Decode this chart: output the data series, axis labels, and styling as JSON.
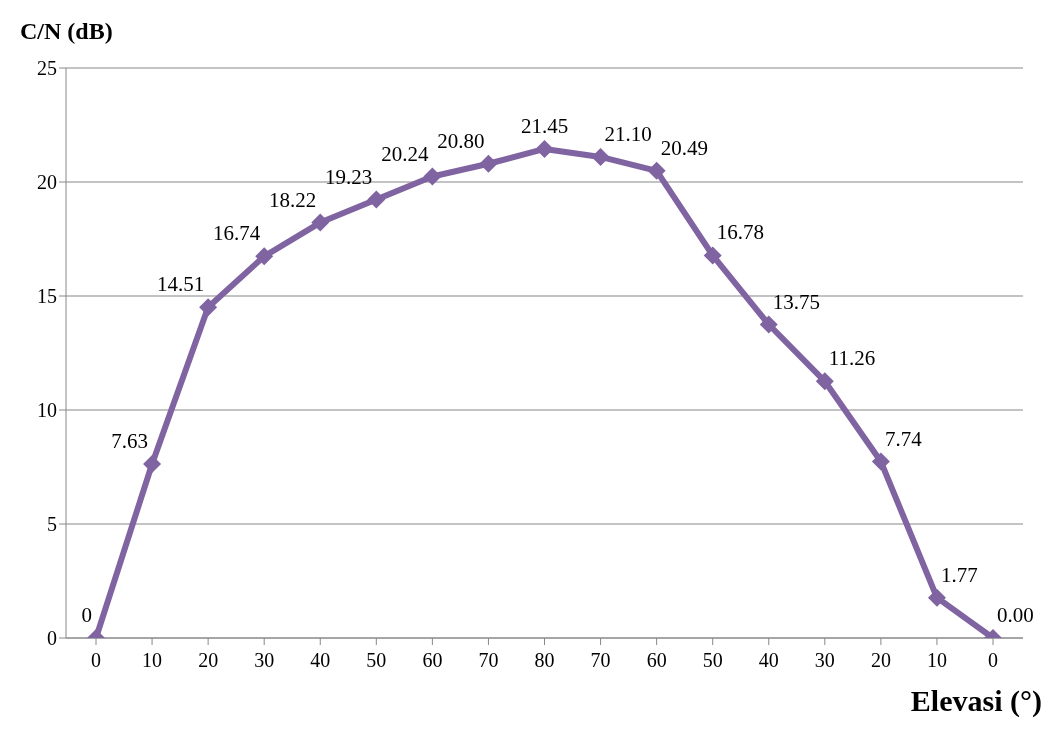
{
  "chart_data": {
    "type": "line",
    "xlabel": "Elevasi (°)",
    "ylabel": "C/N (dB)",
    "categories": [
      "0",
      "10",
      "20",
      "30",
      "40",
      "50",
      "60",
      "70",
      "80",
      "70",
      "60",
      "50",
      "40",
      "30",
      "20",
      "10",
      "0"
    ],
    "series": [
      {
        "color": "#8064a2",
        "values": [
          0,
          7.63,
          14.51,
          16.74,
          18.22,
          19.23,
          20.24,
          20.8,
          21.45,
          21.1,
          20.49,
          16.78,
          13.75,
          11.26,
          7.74,
          1.77,
          0.0
        ],
        "value_labels": [
          "0",
          "7.63",
          "14.51",
          "16.74",
          "18.22",
          "19.23",
          "20.24",
          "20.80",
          "21.45",
          "21.10",
          "20.49",
          "16.78",
          "13.75",
          "11.26",
          "7.74",
          "1.77",
          "0.00"
        ]
      }
    ],
    "ylim": [
      0,
      25
    ],
    "yticks": [
      0,
      5,
      10,
      15,
      20,
      25
    ],
    "grid": "y",
    "marker": "diamond",
    "line_style": "solid"
  }
}
